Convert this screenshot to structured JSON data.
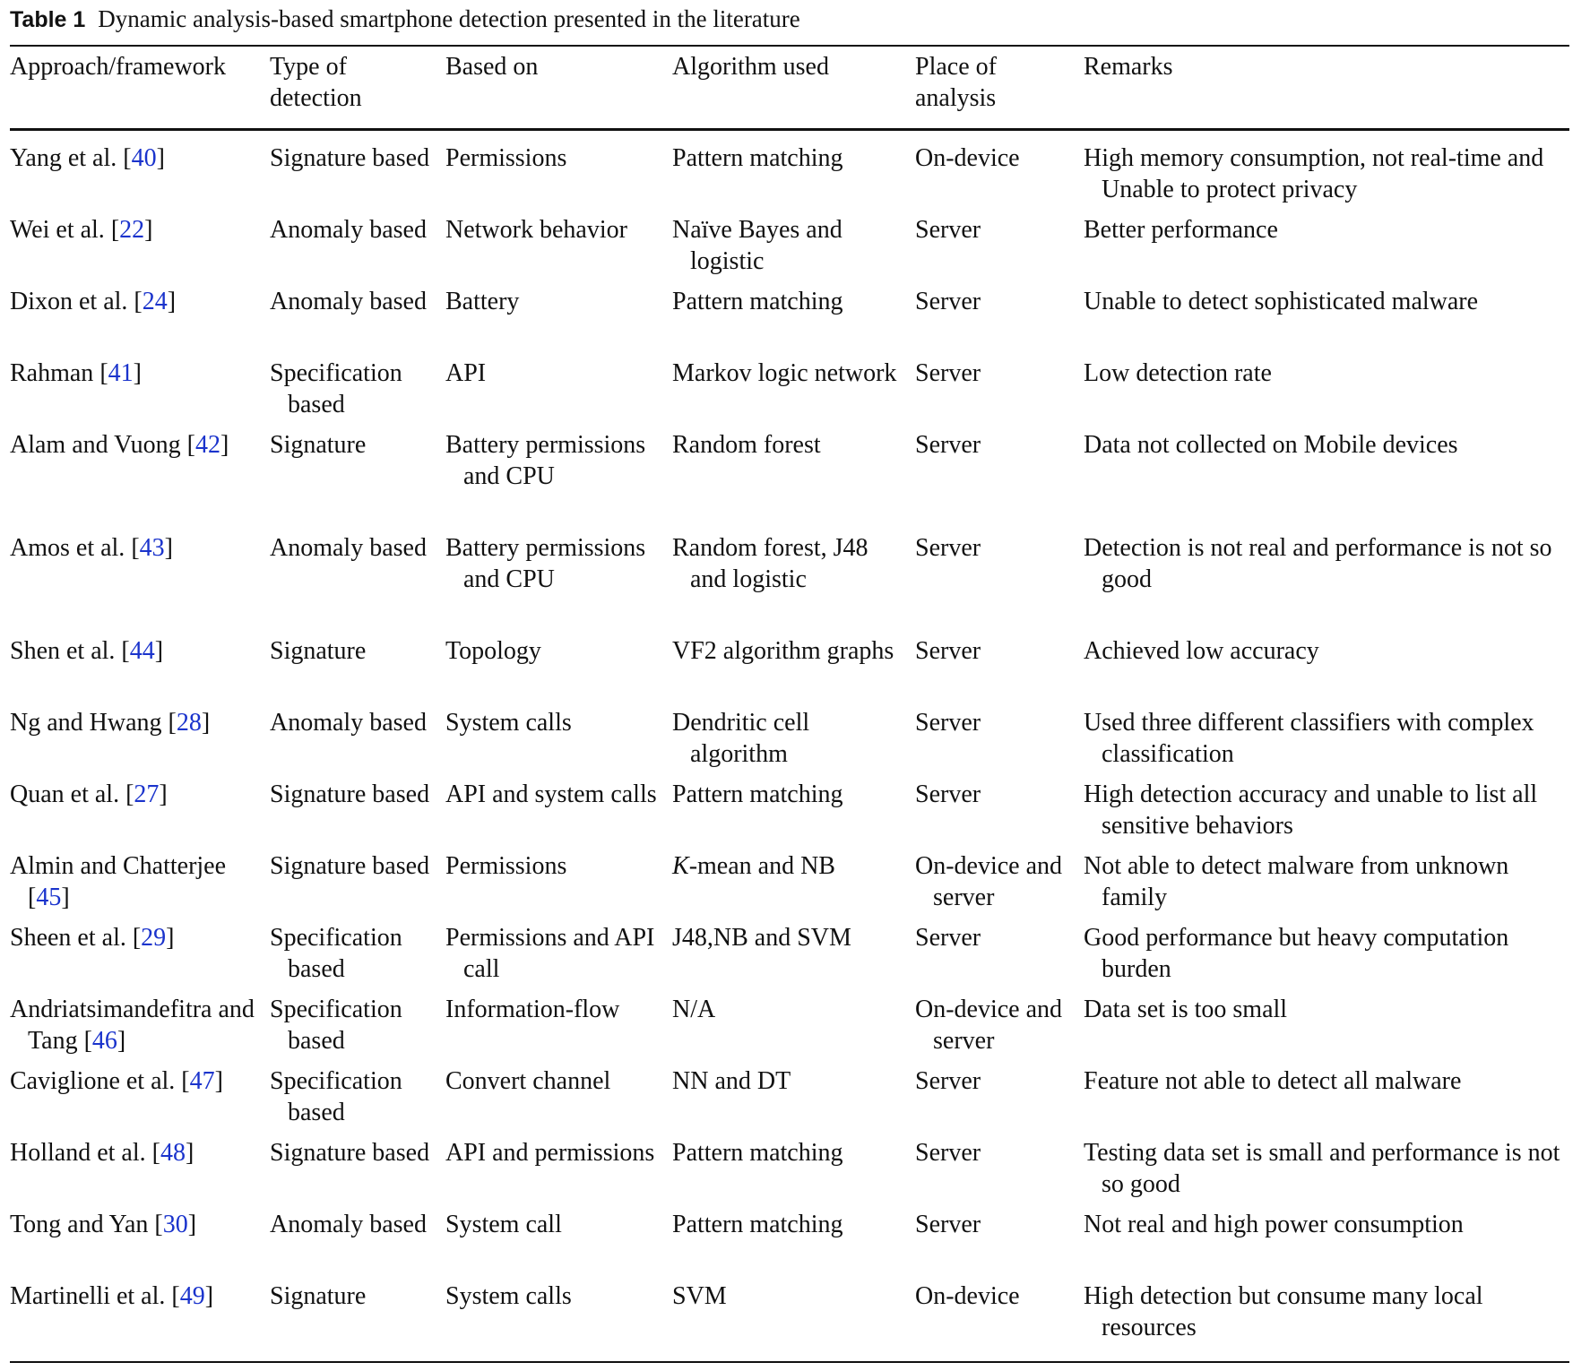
{
  "caption": {
    "label": "Table 1",
    "text": "Dynamic analysis-based smartphone detection presented in the literature"
  },
  "headers": [
    "Approach/framework",
    "Type of detection",
    "Based on",
    "Algorithm used",
    "Place of analysis",
    "Remarks"
  ],
  "rows": [
    {
      "approach": "Yang et al.",
      "ref": "40",
      "type": "Signature based",
      "based_on": "Permissions",
      "algorithm": "Pattern matching",
      "place": "On-device",
      "remarks": "High memory consumption, not real-time and Unable to protect privacy"
    },
    {
      "approach": "Wei et al.",
      "ref": "22",
      "type": "Anomaly based",
      "based_on": "Network behavior",
      "algorithm": "Naïve Bayes and logistic",
      "place": "Server",
      "remarks": "Better performance"
    },
    {
      "approach": "Dixon et al.",
      "ref": "24",
      "type": "Anomaly based",
      "based_on": "Battery",
      "algorithm": "Pattern matching",
      "place": "Server",
      "remarks": "Unable to detect sophisticated malware"
    },
    {
      "approach": "Rahman",
      "ref": "41",
      "type": "Specification based",
      "based_on": "API",
      "algorithm": "Markov logic network",
      "place": "Server",
      "remarks": "Low detection rate"
    },
    {
      "approach": "Alam and Vuong",
      "ref": "42",
      "type": "Signature",
      "based_on": "Battery permissions and CPU",
      "algorithm": "Random forest",
      "place": "Server",
      "remarks": "Data not collected on Mobile devices"
    },
    {
      "approach": "Amos et al.",
      "ref": "43",
      "type": "Anomaly based",
      "based_on": "Battery permissions and CPU",
      "algorithm": "Random forest, J48 and logistic",
      "place": "Server",
      "remarks": "Detection is not real and performance is not so good"
    },
    {
      "approach": "Shen et al.",
      "ref": "44",
      "type": "Signature",
      "based_on": "Topology",
      "algorithm": "VF2 algorithm graphs",
      "place": "Server",
      "remarks": "Achieved low accuracy"
    },
    {
      "approach": "Ng and Hwang",
      "ref": "28",
      "type": "Anomaly based",
      "based_on": "System calls",
      "algorithm": "Dendritic cell algorithm",
      "place": "Server",
      "remarks": "Used three different classifiers with complex classification"
    },
    {
      "approach": "Quan et al.",
      "ref": "27",
      "type": "Signature based",
      "based_on": "API and system calls",
      "algorithm": "Pattern matching",
      "place": "Server",
      "remarks": "High detection accuracy and unable to list all sensitive behaviors"
    },
    {
      "approach": "Almin and Chatterjee",
      "ref": "45",
      "type": "Signature based",
      "based_on": "Permissions",
      "algorithm_italic": "K",
      "algorithm": "-mean and NB",
      "place": "On-device and server",
      "remarks": "Not able to detect malware from unknown family"
    },
    {
      "approach": "Sheen et al.",
      "ref": "29",
      "type": "Specification based",
      "based_on": "Permissions and API call",
      "algorithm": "J48,NB and SVM",
      "place": "Server",
      "remarks": "Good performance but heavy computation burden"
    },
    {
      "approach": "Andriatsimandefitra and Tang",
      "ref": "46",
      "type": "Specification based",
      "based_on": "Information-flow",
      "algorithm": "N/A",
      "place": "On-device and server",
      "remarks": "Data set is too small"
    },
    {
      "approach": "Caviglione et al.",
      "ref": "47",
      "type": "Specification based",
      "based_on": "Convert channel",
      "algorithm": "NN and DT",
      "place": "Server",
      "remarks": "Feature not able to detect all malware"
    },
    {
      "approach": "Holland et al.",
      "ref": "48",
      "type": "Signature based",
      "based_on": "API and permissions",
      "algorithm": "Pattern matching",
      "place": "Server",
      "remarks": "Testing data set is small and performance is not so good"
    },
    {
      "approach": "Tong and Yan",
      "ref": "30",
      "type": "Anomaly based",
      "based_on": "System call",
      "algorithm": "Pattern matching",
      "place": "Server",
      "remarks": "Not real and high power consumption"
    },
    {
      "approach": "Martinelli et al.",
      "ref": "49",
      "type": "Signature",
      "based_on": "System calls",
      "algorithm": "SVM",
      "place": "On-device",
      "remarks": "High detection but consume many local resources"
    }
  ],
  "colors": {
    "text": "#111111",
    "reference_link": "#1a33cc"
  }
}
